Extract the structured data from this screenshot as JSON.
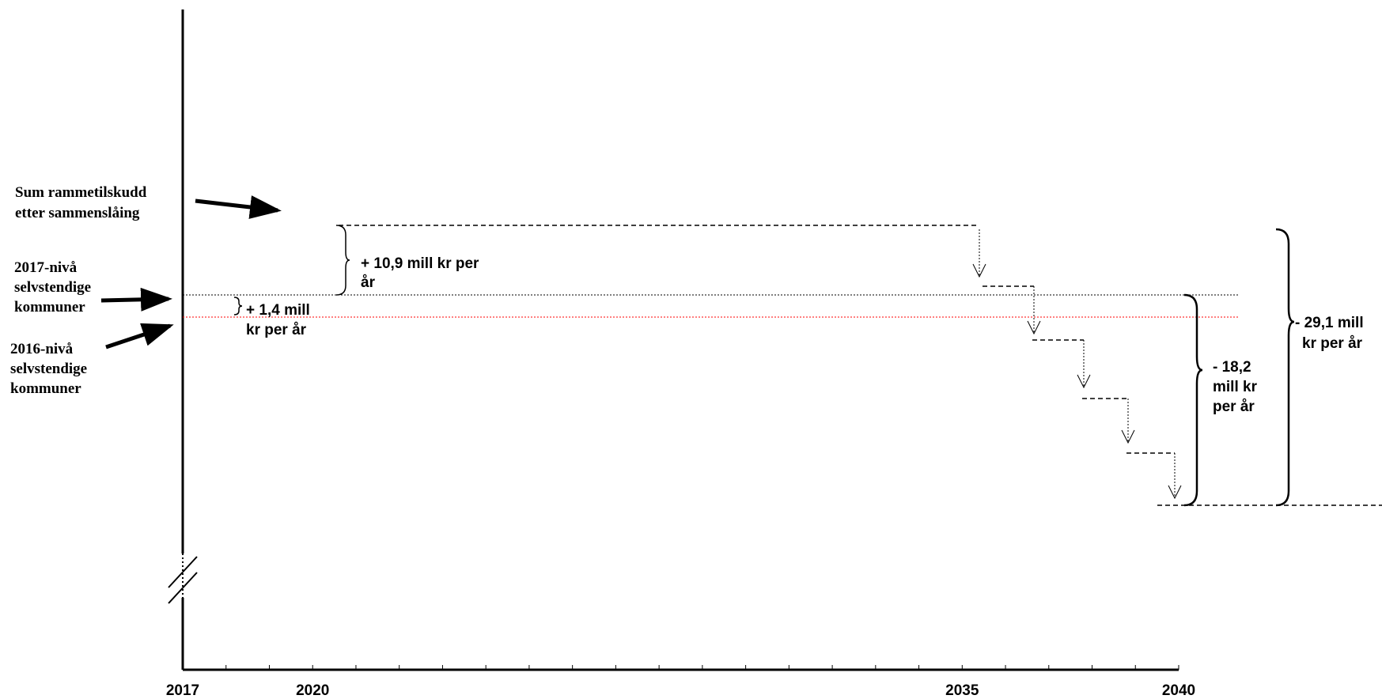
{
  "chart_data": {
    "type": "line",
    "x_axis": {
      "range": [
        2017,
        2040
      ],
      "tick_labels": [
        "2017",
        "2020",
        "2035",
        "2040"
      ]
    },
    "grid": false,
    "legend": "none",
    "levels": [
      {
        "id": "sum_rammetilskudd",
        "label": [
          "Sum rammetilskudd",
          "etter sammenslåing"
        ],
        "style": "dashed",
        "color": "#000000",
        "x_start": 2020,
        "x_end": 2035
      },
      {
        "id": "level_2017",
        "label": [
          "2017-nivå",
          "selvstendige",
          "kommuner"
        ],
        "style": "dotted",
        "color": "#000000"
      },
      {
        "id": "level_2016",
        "label": [
          "2016-nivå",
          "selvstendige",
          "kommuner"
        ],
        "style": "dotted",
        "color": "#ff0000"
      }
    ],
    "annotations": [
      {
        "id": "plus_10_9",
        "value": 10.9,
        "lines": [
          "+ 10,9 mill kr per",
          "år"
        ]
      },
      {
        "id": "plus_1_4",
        "value": 1.4,
        "lines": [
          "+ 1,4 mill",
          "kr per år"
        ]
      },
      {
        "id": "minus_18_2",
        "value": -18.2,
        "lines": [
          "- 18,2",
          "mill kr",
          "per år"
        ]
      },
      {
        "id": "minus_29_1",
        "value": -29.1,
        "lines": [
          "- 29,1 mill",
          "kr per år"
        ]
      }
    ],
    "phase_out_steps": 5
  }
}
